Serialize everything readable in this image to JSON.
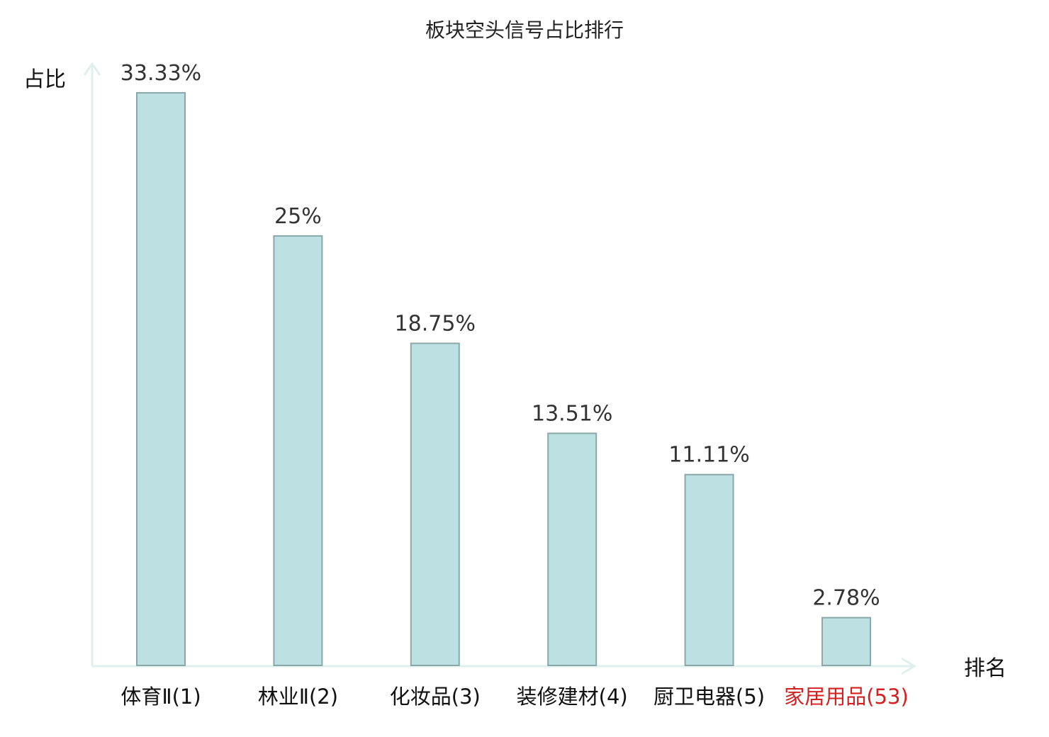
{
  "chart_data": {
    "type": "bar",
    "title": "板块空头信号占比排行",
    "ylabel": "占比",
    "xlabel": "排名",
    "categories": [
      {
        "name": "体育Ⅱ",
        "rank": "(1)"
      },
      {
        "name": "林业Ⅱ",
        "rank": "(2)"
      },
      {
        "name": "化妆品",
        "rank": "(3)"
      },
      {
        "name": "装修建材",
        "rank": "(4)"
      },
      {
        "name": "厨卫电器",
        "rank": "(5)"
      },
      {
        "name": "家居用品",
        "rank": "(53)",
        "highlight": true
      }
    ],
    "values": [
      33.33,
      25,
      18.75,
      13.51,
      11.11,
      2.78
    ],
    "value_labels": [
      "33.33%",
      "25%",
      "18.75%",
      "13.51%",
      "11.11%",
      "2.78%"
    ],
    "ylim": [
      0,
      33.33
    ],
    "grid": false,
    "legend": "none"
  },
  "colors": {
    "bar_fill": "#bde0e3",
    "bar_stroke": "#8aa8aa",
    "axis": "#dff1ef",
    "text": "#111111",
    "highlight": "#d42020"
  }
}
